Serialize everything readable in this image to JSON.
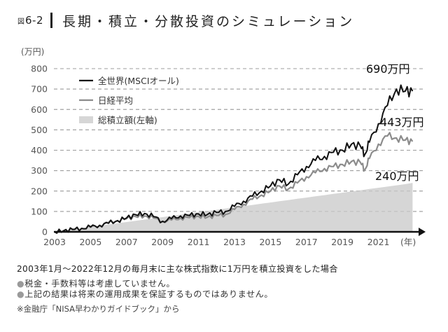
{
  "header": {
    "fig_prefix": "図",
    "fig_number": "6-2",
    "title": "長期・積立・分散投資のシミュレーション"
  },
  "axes": {
    "y_unit": "(万円)",
    "x_unit": "(年)",
    "y_ticks": [
      "0",
      "100",
      "200",
      "300",
      "400",
      "500",
      "600",
      "700",
      "800"
    ],
    "x_ticks": [
      "2003",
      "2005",
      "2007",
      "2009",
      "2011",
      "2013",
      "2015",
      "2017",
      "2019",
      "2021"
    ]
  },
  "legend": [
    {
      "label": "全世界(MSCIオール)",
      "color": "#111111",
      "type": "line"
    },
    {
      "label": "日経平均",
      "color": "#8c8c8c",
      "type": "line"
    },
    {
      "label": "総積立額(左軸)",
      "color": "#d6d6d6",
      "type": "area"
    }
  ],
  "end_labels": {
    "msci": "690万円",
    "nikkei": "443万円",
    "total": "240万円"
  },
  "notes": {
    "main": "2003年1月〜2022年12月の毎月末に主な株式指数に1万円を積立投資をした場合",
    "bullet_mark": "●",
    "bullets": [
      "税金・手数料等は考慮していません。",
      "上記の結果は将来の運用成果を保証するものではありません。"
    ],
    "source": "※金融庁「NISA早わかりガイドブック」から"
  },
  "chart_data": {
    "type": "line",
    "title": "長期・積立・分散投資のシミュレーション",
    "xlabel": "(年)",
    "ylabel": "(万円)",
    "ylim": [
      0,
      800
    ],
    "xlim": [
      2003,
      2023
    ],
    "grid": "horizontal dashed",
    "legend_position": "upper left",
    "x": [
      2003.0,
      2003.5,
      2004.0,
      2004.5,
      2005.0,
      2005.5,
      2006.0,
      2006.5,
      2007.0,
      2007.5,
      2008.0,
      2008.5,
      2009.0,
      2009.5,
      2010.0,
      2010.5,
      2011.0,
      2011.5,
      2012.0,
      2012.5,
      2013.0,
      2013.5,
      2014.0,
      2014.5,
      2015.0,
      2015.5,
      2016.0,
      2016.5,
      2017.0,
      2017.5,
      2018.0,
      2018.5,
      2019.0,
      2019.5,
      2020.0,
      2020.25,
      2020.5,
      2021.0,
      2021.5,
      2022.0,
      2022.5,
      2022.9
    ],
    "series": [
      {
        "name": "全世界(MSCIオール)",
        "color": "#111111",
        "values": [
          0,
          5,
          12,
          17,
          24,
          32,
          42,
          55,
          68,
          84,
          90,
          75,
          52,
          65,
          78,
          80,
          88,
          85,
          95,
          100,
          125,
          150,
          175,
          200,
          225,
          255,
          235,
          280,
          320,
          350,
          370,
          390,
          400,
          430,
          420,
          380,
          440,
          530,
          620,
          700,
          690,
          690
        ]
      },
      {
        "name": "日経平均",
        "color": "#8c8c8c",
        "values": [
          0,
          5,
          11,
          16,
          22,
          32,
          45,
          55,
          65,
          75,
          78,
          68,
          50,
          58,
          68,
          70,
          76,
          72,
          80,
          85,
          110,
          135,
          160,
          180,
          200,
          225,
          210,
          240,
          270,
          290,
          310,
          320,
          330,
          345,
          340,
          305,
          360,
          430,
          470,
          460,
          450,
          443
        ]
      },
      {
        "name": "総積立額(左軸)",
        "color": "#d6d6d6",
        "values": [
          0,
          6,
          12,
          18,
          24,
          30,
          36,
          42,
          48,
          54,
          60,
          66,
          72,
          78,
          84,
          90,
          96,
          102,
          108,
          114,
          120,
          126,
          132,
          138,
          144,
          150,
          156,
          162,
          168,
          174,
          180,
          186,
          192,
          198,
          204,
          207,
          210,
          216,
          222,
          228,
          234,
          240
        ]
      }
    ],
    "annotations": [
      {
        "text": "690万円",
        "series": "全世界(MSCIオール)",
        "x": 2022.9,
        "y": 690
      },
      {
        "text": "443万円",
        "series": "日経平均",
        "x": 2022.9,
        "y": 443
      },
      {
        "text": "240万円",
        "series": "総積立額(左軸)",
        "x": 2022.9,
        "y": 240
      }
    ]
  }
}
